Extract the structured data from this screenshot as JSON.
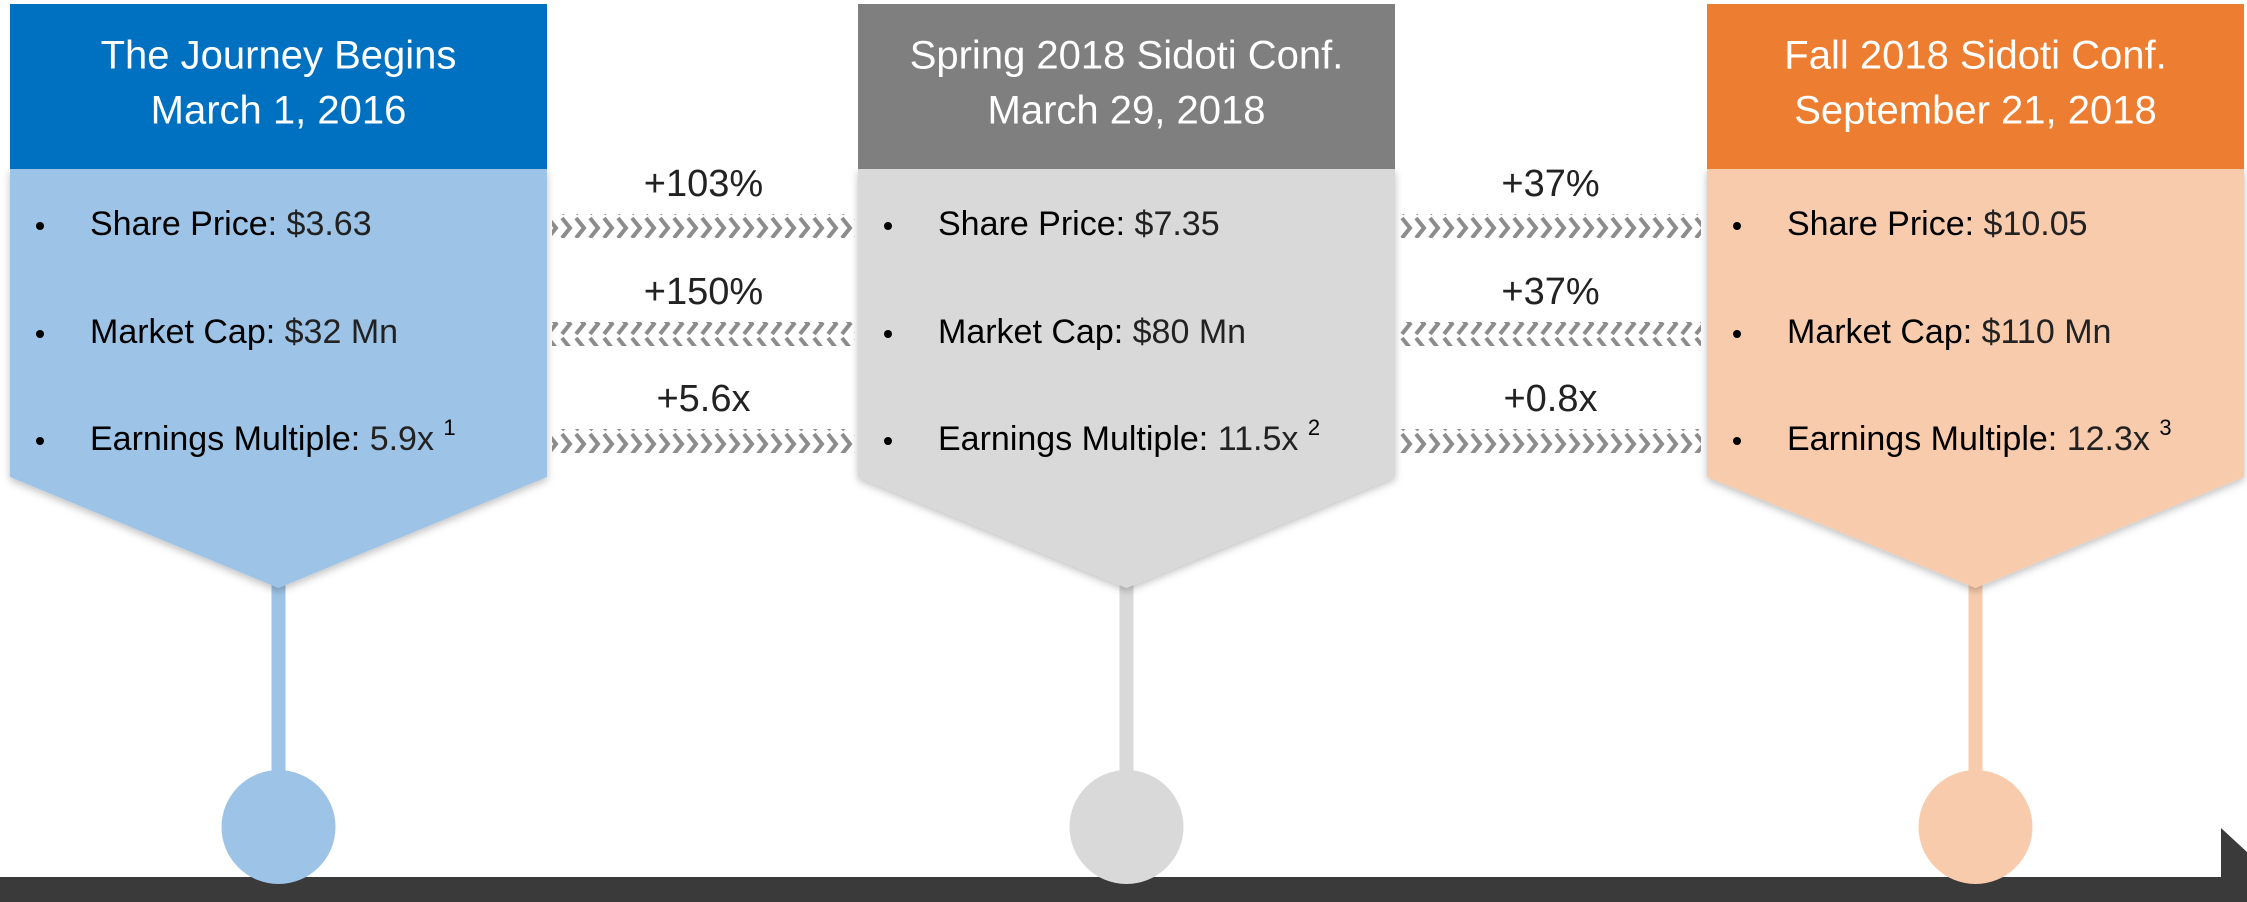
{
  "cards": [
    {
      "title": "The Journey Begins",
      "date": "March 1, 2016",
      "items": [
        {
          "label": "Share Price:",
          "value": "$3.63"
        },
        {
          "label": "Market Cap:",
          "value": "$32 Mn"
        },
        {
          "label": "Earnings Multiple:",
          "value": "5.9x",
          "note": "1"
        }
      ]
    },
    {
      "title": "Spring 2018 Sidoti Conf.",
      "date": "March 29, 2018",
      "items": [
        {
          "label": "Share Price:",
          "value": "$7.35"
        },
        {
          "label": "Market Cap:",
          "value": "$80 Mn"
        },
        {
          "label": "Earnings Multiple:",
          "value": "11.5x",
          "note": "2"
        }
      ]
    },
    {
      "title": "Fall 2018 Sidoti Conf.",
      "date": "September 21, 2018",
      "items": [
        {
          "label": "Share Price:",
          "value": "$10.05"
        },
        {
          "label": "Market Cap:",
          "value": "$110 Mn"
        },
        {
          "label": "Earnings Multiple:",
          "value": "12.3x",
          "note": "3"
        }
      ]
    }
  ],
  "arrows": [
    {
      "changes": [
        "+103%",
        "+150%",
        "+5.6x"
      ]
    },
    {
      "changes": [
        "+37%",
        "+37%",
        "+0.8x"
      ]
    }
  ]
}
